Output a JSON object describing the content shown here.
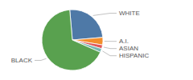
{
  "chart_data": {
    "type": "pie",
    "categories": [
      "WHITE",
      "A.I.",
      "ASIAN",
      "HISPANIC",
      "BLACK"
    ],
    "values": [
      25,
      4,
      2,
      2,
      67
    ]
  }
}
